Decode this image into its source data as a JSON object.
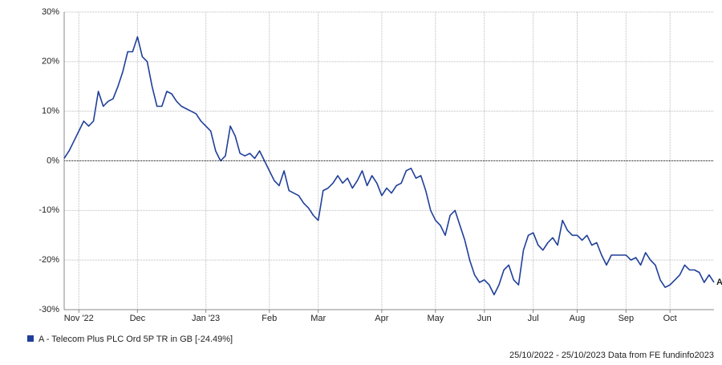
{
  "chart_data": {
    "type": "line",
    "categories": [
      null,
      null,
      null,
      "Nov '22",
      null,
      null,
      null,
      null,
      null,
      null,
      null,
      null,
      null,
      null,
      null,
      "Dec",
      null,
      null,
      null,
      null,
      null,
      null,
      null,
      null,
      null,
      null,
      null,
      null,
      null,
      "Jan '23",
      null,
      null,
      null,
      null,
      null,
      null,
      null,
      null,
      null,
      null,
      null,
      null,
      "Feb",
      null,
      null,
      null,
      null,
      null,
      null,
      null,
      null,
      null,
      "Mar",
      null,
      null,
      null,
      null,
      null,
      null,
      null,
      null,
      null,
      null,
      null,
      null,
      "Apr",
      null,
      null,
      null,
      null,
      null,
      null,
      null,
      null,
      null,
      null,
      "May",
      null,
      null,
      null,
      null,
      null,
      null,
      null,
      null,
      null,
      "Jun",
      null,
      null,
      null,
      null,
      null,
      null,
      null,
      null,
      null,
      "Jul",
      null,
      null,
      null,
      null,
      null,
      null,
      null,
      null,
      "Aug",
      null,
      null,
      null,
      null,
      null,
      null,
      null,
      null,
      null,
      "Sep",
      null,
      null,
      null,
      null,
      null,
      null,
      null,
      null,
      "Oct",
      null,
      null,
      null,
      null,
      null,
      null,
      null,
      null,
      null
    ],
    "series": [
      {
        "name": "A - Telecom Plus PLC Ord 5P TR in GB [-24.49%]",
        "color": "#1f3f99",
        "end_label": "A",
        "values": [
          0.5,
          2,
          4,
          6,
          8,
          7,
          8,
          14,
          11,
          12,
          12.5,
          15,
          18,
          22,
          22,
          25,
          21,
          20,
          15,
          11,
          11,
          14,
          13.5,
          12,
          11,
          10.5,
          10,
          9.5,
          8,
          7,
          6,
          2,
          0,
          1,
          7,
          5,
          1.5,
          1,
          1.5,
          0.5,
          2,
          0,
          -2,
          -4,
          -5,
          -2,
          -6,
          -6.5,
          -7,
          -8.5,
          -9.5,
          -11,
          -12,
          -6,
          -5.5,
          -4.5,
          -3,
          -4.5,
          -3.5,
          -5.5,
          -4,
          -2,
          -5,
          -3,
          -4.5,
          -7,
          -5.5,
          -6.5,
          -5,
          -4.5,
          -2,
          -1.5,
          -3.5,
          -3,
          -6,
          -10,
          -12,
          -13,
          -15,
          -11,
          -10,
          -13,
          -16,
          -20,
          -23,
          -24.5,
          -24,
          -25,
          -27,
          -25,
          -22,
          -21,
          -24,
          -25,
          -18,
          -15,
          -14.5,
          -17,
          -18,
          -16.5,
          -15.5,
          -17,
          -12,
          -14,
          -15,
          -15,
          -16,
          -15,
          -17,
          -16.5,
          -19,
          -21,
          -19,
          -19,
          -19,
          -19,
          -20,
          -19.5,
          -21,
          -18.5,
          -20,
          -21,
          -24,
          -25.5,
          -25,
          -24,
          -23,
          -21,
          -22,
          -22,
          -22.5,
          -24.5,
          -23,
          -24.49
        ]
      }
    ],
    "ylim": [
      -30,
      30
    ],
    "yticks": [
      {
        "value": -30,
        "label": "-30%"
      },
      {
        "value": -20,
        "label": "-20%"
      },
      {
        "value": -10,
        "label": "-10%"
      },
      {
        "value": 0,
        "label": "0%"
      },
      {
        "value": 10,
        "label": "10%"
      },
      {
        "value": 20,
        "label": "20%"
      },
      {
        "value": 30,
        "label": "30%"
      }
    ],
    "grid": true,
    "footer": "25/10/2022 - 25/10/2023 Data from FE fundinfo2023"
  }
}
